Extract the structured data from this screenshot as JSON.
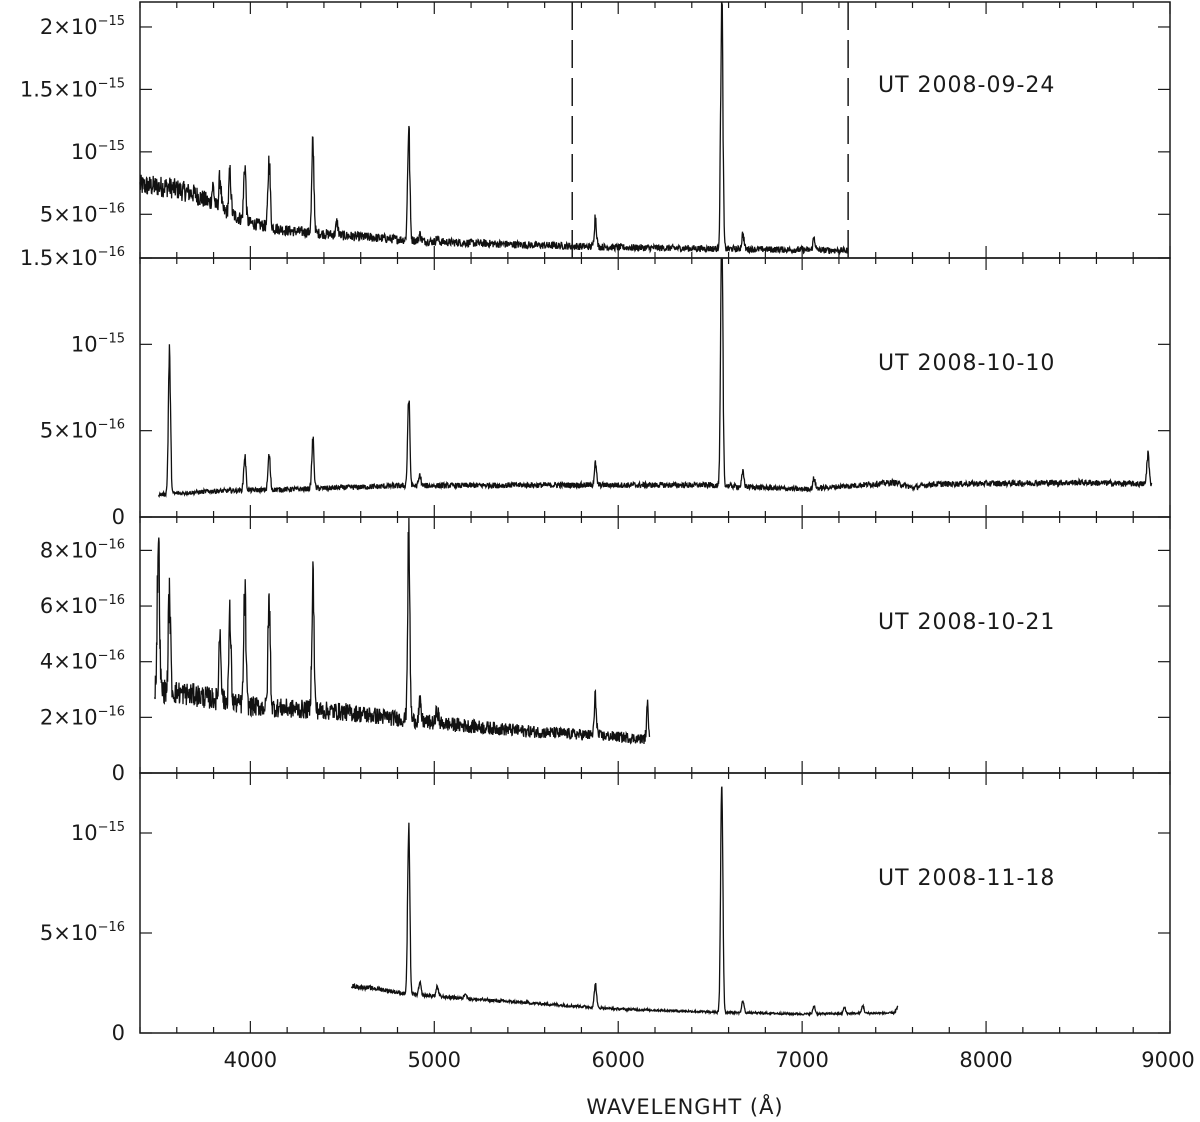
{
  "chart_data": [
    {
      "type": "line",
      "label": "UT 2008-09-24",
      "xlim": [
        3400,
        9000
      ],
      "ylim": [
        1.5e-16,
        2.2e-15
      ],
      "yticks": [
        {
          "mant": "1.5×10",
          "exp": "−16",
          "value": 1.5e-16
        },
        {
          "mant": "5×10",
          "exp": "−16",
          "value": 5e-16
        },
        {
          "mant": "10",
          "exp": "−15",
          "value": 1e-15
        },
        {
          "mant": "1.5×10",
          "exp": "−15",
          "value": 1.5e-15
        },
        {
          "mant": "2×10",
          "exp": "−15",
          "value": 2e-15
        }
      ],
      "vlines": [
        5750,
        7250
      ],
      "range": [
        3400,
        7250
      ],
      "noise": 0.12,
      "continuum": [
        [
          3400,
          7.3e-16
        ],
        [
          3550,
          7.2e-16
        ],
        [
          3700,
          6.6e-16
        ],
        [
          3850,
          5.3e-16
        ],
        [
          4000,
          4.3e-16
        ],
        [
          4200,
          3.7e-16
        ],
        [
          4500,
          3.3e-16
        ],
        [
          5000,
          2.8e-16
        ],
        [
          5500,
          2.55e-16
        ],
        [
          6000,
          2.35e-16
        ],
        [
          6500,
          2.25e-16
        ],
        [
          7000,
          2.15e-16
        ],
        [
          7250,
          2.1e-16
        ]
      ],
      "lines": [
        [
          3797,
          1.5e-16
        ],
        [
          3835,
          2.5e-16
        ],
        [
          3889,
          3.2e-16
        ],
        [
          3970,
          4.5e-16
        ],
        [
          4102,
          5.5e-16
        ],
        [
          4340,
          7e-16
        ],
        [
          4471,
          1e-16
        ],
        [
          4861,
          9e-16
        ],
        [
          4922,
          5e-17
        ],
        [
          5016,
          3e-17
        ],
        [
          5876,
          2.4e-16
        ],
        [
          6563,
          2e-15
        ],
        [
          6678,
          1.2e-16
        ],
        [
          7065,
          1e-16
        ]
      ]
    },
    {
      "type": "line",
      "label": "UT 2008-10-10",
      "xlim": [
        3400,
        9000
      ],
      "ylim": [
        0,
        1.5e-15
      ],
      "yticks": [
        {
          "mant": "0",
          "exp": "",
          "value": 0
        },
        {
          "mant": "5×10",
          "exp": "−16",
          "value": 5e-16
        },
        {
          "mant": "10",
          "exp": "−15",
          "value": 1e-15
        }
      ],
      "range": [
        3500,
        8900
      ],
      "noise": 0.09,
      "continuum": [
        [
          3500,
          1.3e-16
        ],
        [
          3800,
          1.5e-16
        ],
        [
          4200,
          1.6e-16
        ],
        [
          4800,
          1.8e-16
        ],
        [
          5500,
          1.85e-16
        ],
        [
          6500,
          1.85e-16
        ],
        [
          7000,
          1.6e-16
        ],
        [
          7500,
          2e-16
        ],
        [
          7600,
          1.7e-16
        ],
        [
          7700,
          1.9e-16
        ],
        [
          8500,
          2e-16
        ],
        [
          8900,
          1.9e-16
        ]
      ],
      "lines": [
        [
          3560,
          8e-16
        ],
        [
          3970,
          2e-16
        ],
        [
          4102,
          2e-16
        ],
        [
          4340,
          2.8e-16
        ],
        [
          4861,
          5.1e-16
        ],
        [
          4922,
          6e-17
        ],
        [
          5876,
          1.2e-16
        ],
        [
          6563,
          1.45e-15
        ],
        [
          6678,
          8e-17
        ],
        [
          7065,
          6e-17
        ],
        [
          8880,
          1.8e-16
        ]
      ]
    },
    {
      "type": "line",
      "label": "UT 2008-10-21",
      "xlim": [
        3400,
        9000
      ],
      "ylim": [
        0,
        9.2e-16
      ],
      "yticks": [
        {
          "mant": "0",
          "exp": "",
          "value": 0
        },
        {
          "mant": "2×10",
          "exp": "−16",
          "value": 2e-16
        },
        {
          "mant": "4×10",
          "exp": "−16",
          "value": 4e-16
        },
        {
          "mant": "6×10",
          "exp": "−16",
          "value": 6e-16
        },
        {
          "mant": "8×10",
          "exp": "−16",
          "value": 8e-16
        }
      ],
      "range": [
        3480,
        6170
      ],
      "noise": 0.15,
      "continuum": [
        [
          3480,
          3e-16
        ],
        [
          3700,
          2.8e-16
        ],
        [
          4000,
          2.4e-16
        ],
        [
          4500,
          2.2e-16
        ],
        [
          5000,
          1.8e-16
        ],
        [
          5500,
          1.5e-16
        ],
        [
          6000,
          1.3e-16
        ],
        [
          6170,
          1.2e-16
        ]
      ],
      "lines": [
        [
          3500,
          5.5e-16
        ],
        [
          3560,
          3.5e-16
        ],
        [
          3835,
          2.5e-16
        ],
        [
          3889,
          3e-16
        ],
        [
          3970,
          4e-16
        ],
        [
          4102,
          3.8e-16
        ],
        [
          4340,
          4.8e-16
        ],
        [
          4861,
          6.4e-16
        ],
        [
          4922,
          6e-17
        ],
        [
          5016,
          5e-17
        ],
        [
          5876,
          1.3e-16
        ],
        [
          6160,
          1.1e-16
        ]
      ]
    },
    {
      "type": "line",
      "label": "UT 2008-11-18",
      "xlim": [
        3400,
        9000
      ],
      "ylim": [
        0,
        1.3e-15
      ],
      "yticks": [
        {
          "mant": "0",
          "exp": "",
          "value": 0
        },
        {
          "mant": "5×10",
          "exp": "−16",
          "value": 5e-16
        },
        {
          "mant": "10",
          "exp": "−15",
          "value": 1e-15
        }
      ],
      "range": [
        4550,
        7520
      ],
      "noise": 0.05,
      "continuum": [
        [
          4550,
          2.35e-16
        ],
        [
          4700,
          2.2e-16
        ],
        [
          4850,
          1.95e-16
        ],
        [
          5200,
          1.7e-16
        ],
        [
          5600,
          1.45e-16
        ],
        [
          6000,
          1.2e-16
        ],
        [
          6500,
          1.05e-16
        ],
        [
          7000,
          9.5e-17
        ],
        [
          7500,
          1e-16
        ],
        [
          7520,
          1.3e-16
        ]
      ],
      "lines": [
        [
          4861,
          8.2e-16
        ],
        [
          4922,
          6e-17
        ],
        [
          5016,
          5e-17
        ],
        [
          5169,
          3e-17
        ],
        [
          5876,
          1.2e-16
        ],
        [
          6563,
          1.15e-15
        ],
        [
          6678,
          6e-17
        ],
        [
          7065,
          4e-17
        ],
        [
          7230,
          3e-17
        ],
        [
          7330,
          4e-17
        ]
      ]
    }
  ],
  "x_axis": {
    "ticks": [
      4000,
      5000,
      6000,
      7000,
      8000,
      9000
    ],
    "label": "WAVELENGHT (Å)"
  }
}
